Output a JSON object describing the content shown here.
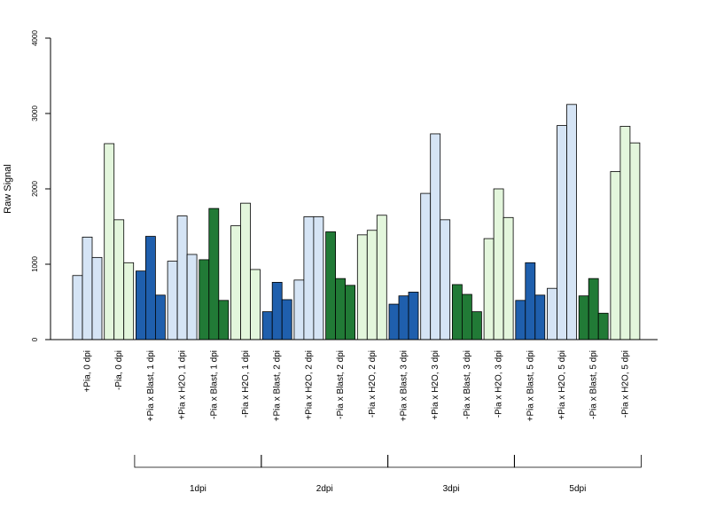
{
  "chart_data": {
    "type": "bar",
    "ylabel": "Raw Signal",
    "ylim": [
      0,
      4000
    ],
    "yticks": [
      0,
      1000,
      2000,
      3000,
      4000
    ],
    "colors": {
      "pia_plus_blast": "#1f5fad",
      "pia_plus_mock": "#d5e4f5",
      "pia_minus_blast": "#217a36",
      "pia_minus_mock": "#e3f6dc"
    },
    "categories": [
      {
        "label": "+Pia, 0 dpi",
        "values": [
          850,
          1360,
          1090
        ],
        "color": "pia_plus_mock"
      },
      {
        "label": "-Pia, 0 dpi",
        "values": [
          2600,
          1590,
          1020
        ],
        "color": "pia_minus_mock"
      },
      {
        "label": "+Pia x Blast, 1 dpi",
        "values": [
          910,
          1370,
          590
        ],
        "color": "pia_plus_blast"
      },
      {
        "label": "+Pia x H2O, 1 dpi",
        "values": [
          1040,
          1640,
          1130
        ],
        "color": "pia_plus_mock"
      },
      {
        "label": "-Pia x Blast, 1 dpi",
        "values": [
          1060,
          1740,
          520
        ],
        "color": "pia_minus_blast"
      },
      {
        "label": "-Pia x H2O, 1 dpi",
        "values": [
          1510,
          1810,
          930
        ],
        "color": "pia_minus_mock"
      },
      {
        "label": "+Pia x Blast, 2 dpi",
        "values": [
          370,
          760,
          530
        ],
        "color": "pia_plus_blast"
      },
      {
        "label": "+Pia x H2O, 2 dpi",
        "values": [
          790,
          1630,
          1630
        ],
        "color": "pia_plus_mock"
      },
      {
        "label": "-Pia x Blast, 2 dpi",
        "values": [
          1430,
          810,
          720
        ],
        "color": "pia_minus_blast"
      },
      {
        "label": "-Pia x H2O, 2 dpi",
        "values": [
          1390,
          1450,
          1650
        ],
        "color": "pia_minus_mock"
      },
      {
        "label": "+Pia x Blast, 3 dpi",
        "values": [
          470,
          580,
          630
        ],
        "color": "pia_plus_blast"
      },
      {
        "label": "+Pia x H2O, 3 dpi",
        "values": [
          1940,
          2730,
          1590
        ],
        "color": "pia_plus_mock"
      },
      {
        "label": "-Pia x Blast, 3 dpi",
        "values": [
          730,
          600,
          370
        ],
        "color": "pia_minus_blast"
      },
      {
        "label": "-Pia x H2O, 3 dpi",
        "values": [
          1340,
          2000,
          1620
        ],
        "color": "pia_minus_mock"
      },
      {
        "label": "+Pia x Blast, 5 dpi",
        "values": [
          520,
          1020,
          590
        ],
        "color": "pia_plus_blast"
      },
      {
        "label": "+Pia x H2O, 5 dpi",
        "values": [
          680,
          2840,
          3120
        ],
        "color": "pia_plus_mock"
      },
      {
        "label": "-Pia x Blast, 5 dpi",
        "values": [
          580,
          810,
          350
        ],
        "color": "pia_minus_blast"
      },
      {
        "label": "-Pia x H2O, 5 dpi",
        "values": [
          2230,
          2830,
          2610
        ],
        "color": "pia_minus_mock"
      }
    ],
    "groups": [
      {
        "label": "1dpi",
        "from": 2,
        "to": 5
      },
      {
        "label": "2dpi",
        "from": 6,
        "to": 9
      },
      {
        "label": "3dpi",
        "from": 10,
        "to": 13
      },
      {
        "label": "5dpi",
        "from": 14,
        "to": 17
      }
    ]
  }
}
